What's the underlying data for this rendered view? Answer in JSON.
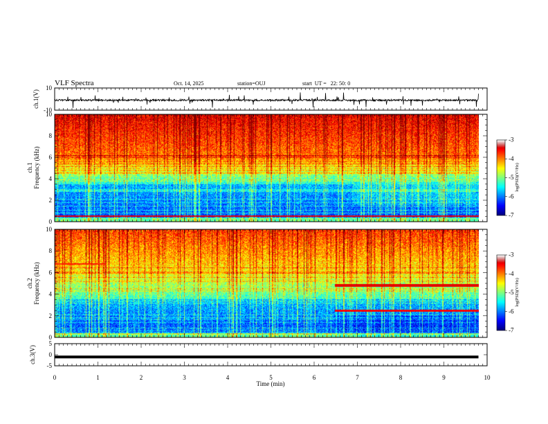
{
  "header": {
    "title": "VLF Spectra",
    "date": "Oct. 14, 2025",
    "station": "station=OUJ",
    "start": "start  UT =   22: 50: 0"
  },
  "chart_data": [
    {
      "type": "line",
      "panel": "ch1-waveform",
      "ylabel": "ch.1(V)",
      "ylim": [
        -10,
        10
      ],
      "yticks": [
        "10",
        "-10"
      ],
      "xlim": [
        0,
        10
      ],
      "baseline": -1,
      "color": "#000000"
    },
    {
      "type": "heatmap",
      "panel": "ch1-spectrogram",
      "ylabel_line1": "ch.1",
      "ylabel_line2": "Frequency (kHz)",
      "ylim": [
        0,
        10
      ],
      "yticks": [
        "0",
        "2",
        "4",
        "6",
        "8",
        "10"
      ],
      "xlim": [
        0,
        10
      ],
      "data_end_min": 9.8,
      "colorbar": {
        "label": "log(PSD)(V²/Hz)",
        "range": [
          -7,
          -3
        ],
        "ticks": [
          "-3",
          "-4",
          "-5",
          "-6",
          "-7"
        ]
      }
    },
    {
      "type": "heatmap",
      "panel": "ch2-spectrogram",
      "ylabel_line1": "ch.2",
      "ylabel_line2": "Frequency (kHz)",
      "ylim": [
        0,
        10
      ],
      "yticks": [
        "0",
        "2",
        "4",
        "6",
        "8",
        "10"
      ],
      "xlim": [
        0,
        10
      ],
      "data_end_min": 9.8,
      "colorbar": {
        "label": "log(PSD)(V²/Hz)",
        "range": [
          -7,
          -3
        ],
        "ticks": [
          "-3",
          "-4",
          "-5",
          "-6",
          "-7"
        ]
      }
    },
    {
      "type": "line",
      "panel": "ch3-waveform",
      "ylabel": "ch.3(V)",
      "ylim": [
        -5,
        5
      ],
      "yticks": [
        "5",
        "0",
        "-5"
      ],
      "xlim": [
        0,
        10
      ],
      "values_constant": -1,
      "color": "#000000"
    }
  ],
  "xaxis": {
    "label": "Time (min)",
    "ticks": [
      "0",
      "1",
      "2",
      "3",
      "4",
      "5",
      "6",
      "7",
      "8",
      "9",
      "10"
    ]
  }
}
